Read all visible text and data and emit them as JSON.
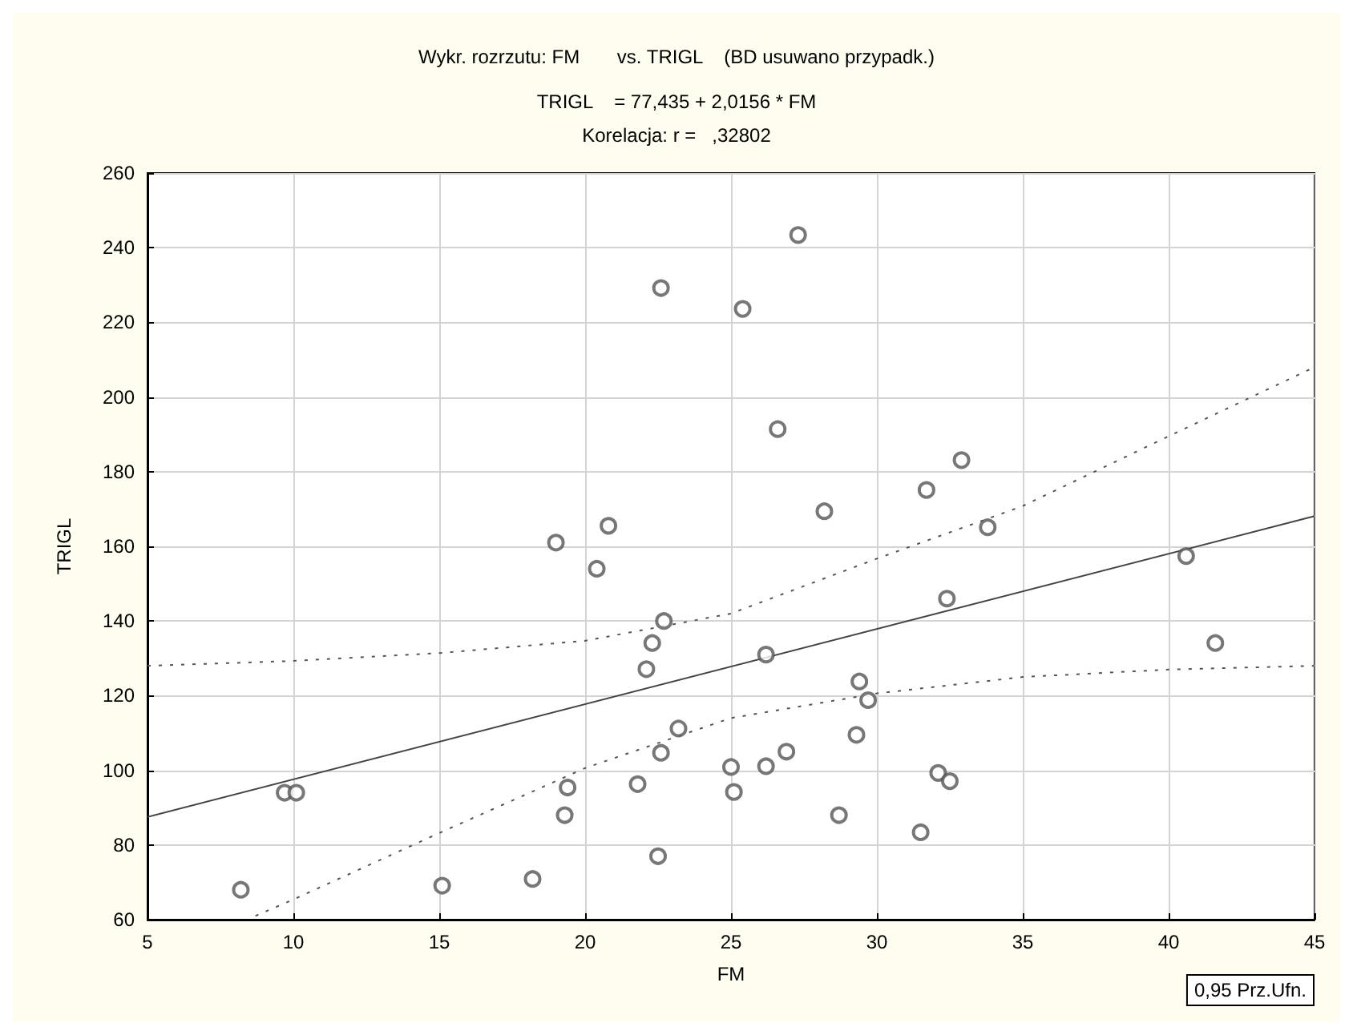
{
  "chart_data": {
    "type": "scatter",
    "title": "Wykr. rozrzutu: FM       vs. TRIGL    (BD usuwano przypadk.)",
    "subtitle": "TRIGL    = 77,435 + 2,0156 * FM\nKorelacja: r =   ,32802",
    "xlabel": "FM",
    "ylabel": "TRIGL",
    "annotations": [
      "0,95 Prz.Ufn."
    ],
    "xlim": [
      5,
      45
    ],
    "xticks": [
      5,
      10,
      15,
      20,
      25,
      30,
      35,
      40,
      45
    ],
    "ylim": [
      60,
      260
    ],
    "yticks": [
      60,
      80,
      100,
      120,
      140,
      160,
      180,
      200,
      220,
      240,
      260
    ],
    "grid": true,
    "series": [
      {
        "color": "#555555",
        "marker": "circle",
        "x": [
          27.3,
          25.4,
          26.6,
          28.2,
          31.7,
          32.9,
          33.8,
          40.6,
          22.6,
          19.0,
          20.8,
          20.4,
          22.7,
          22.3,
          22.1,
          23.2,
          22.6,
          25.0,
          25.1,
          9.7,
          10.1,
          19.4,
          19.3,
          21.8,
          22.5,
          8.2,
          15.1,
          18.2,
          32.4,
          26.2,
          41.6,
          29.4,
          29.7,
          29.3,
          26.9,
          26.2,
          28.7,
          32.1,
          32.5,
          31.5
        ],
        "values": [
          243.4,
          223.6,
          191.4,
          169.4,
          175.1,
          183.1,
          165.1,
          157.4,
          229.2,
          161,
          165.5,
          154,
          140,
          134.1,
          127.1,
          111.2,
          104.7,
          100.9,
          94.2,
          94,
          94,
          95.4,
          88,
          96.3,
          77,
          68,
          69.1,
          70.9,
          146,
          131,
          134.1,
          123.8,
          118.8,
          109.5,
          105,
          101.1,
          88,
          99.3,
          97.1,
          83.4
        ]
      },
      {
        "type": "line",
        "color": "#444444",
        "line_style": "solid",
        "marker": "none",
        "x": [
          5,
          45
        ],
        "values": [
          87.5,
          168.1
        ]
      },
      {
        "type": "line",
        "color": "#555555",
        "line_style": "dotted",
        "marker": "none",
        "x": [
          5,
          10,
          15,
          20,
          25,
          30,
          35,
          40,
          45
        ],
        "values": [
          128,
          129.3,
          131.4,
          134.7,
          142,
          156.7,
          170.8,
          189.5,
          208
        ]
      },
      {
        "type": "line",
        "color": "#555555",
        "line_style": "dotted",
        "marker": "none",
        "x": [
          8.7,
          10,
          15,
          20,
          25,
          30,
          35,
          40,
          45
        ],
        "values": [
          61,
          65.4,
          83.2,
          100.6,
          114,
          120.6,
          125,
          127,
          128
        ]
      }
    ]
  }
}
